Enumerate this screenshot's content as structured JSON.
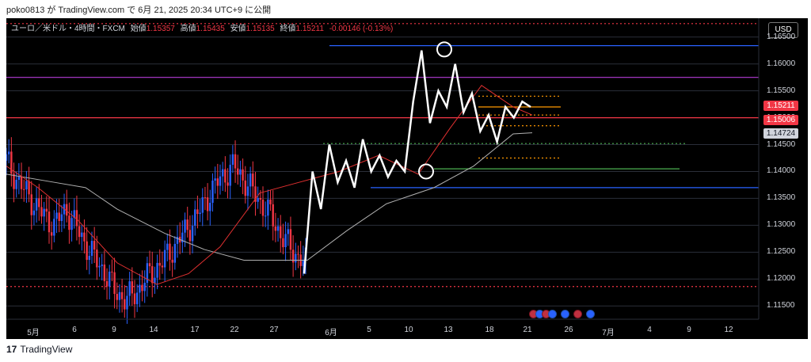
{
  "header": {
    "publish_line": "poko0813 が TradingView.com で 6月 21, 2025 20:34 UTC+9 に公開"
  },
  "legend": {
    "symbol": "ユーロ／米ドル・4時間・FXCM",
    "open_label": "始値",
    "open": "1.15357",
    "high_label": "高値",
    "high": "1.15435",
    "low_label": "安値",
    "low": "1.15135",
    "close_label": "終値",
    "close": "1.15211",
    "change": "-0.00146 (-0.13%)"
  },
  "currency_button": "USD",
  "price_axis": [
    "1.16500",
    "1.16000",
    "1.15500",
    "1.15000",
    "1.14500",
    "1.14000",
    "1.13500",
    "1.13000",
    "1.12500",
    "1.12000",
    "1.11500"
  ],
  "price_tags": {
    "last": {
      "label": "1.15211",
      "color": "#f23645"
    },
    "level": {
      "label": "1.15006",
      "color": "#f23645"
    },
    "ma": {
      "label": "1.14724",
      "color": "#d1d4dc"
    }
  },
  "time_axis": [
    "5月",
    "6",
    "9",
    "14",
    "17",
    "22",
    "27",
    "6月",
    "5",
    "10",
    "13",
    "18",
    "21",
    "26",
    "7月",
    "4",
    "9",
    "12"
  ],
  "footer": {
    "brand": "TradingView"
  },
  "colors": {
    "background": "#000000",
    "up": "#2962ff",
    "down": "#f23645",
    "ma_fast": "#e03030",
    "ma_slow": "#b0b0b0",
    "projection": "#ffffff",
    "blue_line": "#2962ff",
    "purple_line": "#b43cd6",
    "orange_line": "#ff9800",
    "green_line": "#4caf50"
  },
  "chart_data": {
    "type": "candlestick",
    "symbol": "EURUSD",
    "timeframe": "4H",
    "ylim": [
      1.114,
      1.1685
    ],
    "y_ticks": [
      1.165,
      1.16,
      1.155,
      1.15,
      1.145,
      1.14,
      1.135,
      1.13,
      1.125,
      1.12,
      1.115
    ],
    "x_ticks": [
      "5月",
      "6",
      "9",
      "14",
      "17",
      "22",
      "27",
      "6月",
      "5",
      "10",
      "13",
      "18",
      "21",
      "26",
      "7月",
      "4",
      "9",
      "12"
    ],
    "price_series": [
      1.142,
      1.138,
      1.135,
      1.132,
      1.13,
      1.133,
      1.129,
      1.125,
      1.122,
      1.118,
      1.116,
      1.118,
      1.121,
      1.123,
      1.126,
      1.129,
      1.132,
      1.136,
      1.139,
      1.141,
      1.138,
      1.135,
      1.132,
      1.128,
      1.125,
      1.123
    ],
    "projection_path": [
      1.121,
      1.14,
      1.133,
      1.145,
      1.138,
      1.142,
      1.137,
      1.146,
      1.14,
      1.143,
      1.139,
      1.142,
      1.14,
      1.153,
      1.1625,
      1.149,
      1.155,
      1.152,
      1.16,
      1.151,
      1.1545,
      1.1475,
      1.1505,
      1.1455,
      1.152,
      1.15,
      1.153,
      1.152
    ],
    "horizontal_levels": [
      {
        "price": 1.1675,
        "color": "#f23645",
        "style": "dotted"
      },
      {
        "price": 1.1634,
        "color": "#2962ff",
        "style": "solid"
      },
      {
        "price": 1.1575,
        "color": "#b43cd6",
        "style": "solid"
      },
      {
        "price": 1.15,
        "color": "#f23645",
        "style": "solid"
      },
      {
        "price": 1.137,
        "color": "#2962ff",
        "style": "solid"
      },
      {
        "price": 1.1405,
        "color": "#4caf50",
        "style": "solid"
      },
      {
        "price": 1.1452,
        "color": "#4caf50",
        "style": "dotted"
      },
      {
        "price": 1.1186,
        "color": "#f23645",
        "style": "dotted"
      }
    ]
  }
}
